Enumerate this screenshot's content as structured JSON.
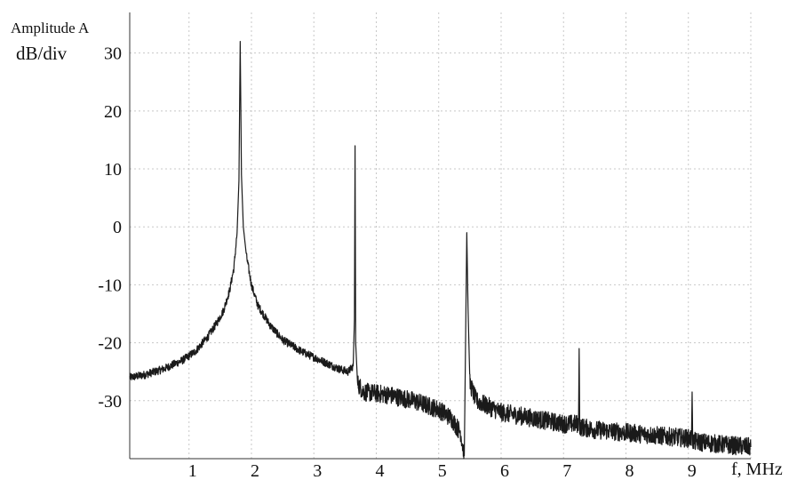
{
  "chart_data": {
    "type": "line",
    "ylabel": "Amplitude A",
    "yunit": "dB/div",
    "xlabel": "f, MHz",
    "xlim": [
      0.05,
      10.0
    ],
    "ylim": [
      -40,
      37
    ],
    "xticks": [
      1,
      2,
      3,
      4,
      5,
      6,
      7,
      8,
      9
    ],
    "yticks": [
      30,
      20,
      10,
      0,
      -10,
      -20,
      -30
    ],
    "grid": true,
    "series": [
      {
        "color": "#1a1a1a",
        "points": [
          [
            0.05,
            -26.0
          ],
          [
            0.3,
            -25.5
          ],
          [
            0.6,
            -24.5
          ],
          [
            0.9,
            -23.0
          ],
          [
            1.1,
            -21.5
          ],
          [
            1.3,
            -19.0
          ],
          [
            1.45,
            -16.5
          ],
          [
            1.55,
            -14.5
          ],
          [
            1.65,
            -11.0
          ],
          [
            1.72,
            -7.0
          ],
          [
            1.77,
            -1.0
          ],
          [
            1.8,
            8.0
          ],
          [
            1.82,
            32.0
          ],
          [
            1.84,
            9.0
          ],
          [
            1.87,
            0.0
          ],
          [
            1.92,
            -5.0
          ],
          [
            2.0,
            -10.0
          ],
          [
            2.1,
            -13.5
          ],
          [
            2.3,
            -17.0
          ],
          [
            2.5,
            -19.5
          ],
          [
            2.8,
            -21.5
          ],
          [
            3.1,
            -23.0
          ],
          [
            3.4,
            -24.5
          ],
          [
            3.55,
            -25.0
          ],
          [
            3.63,
            -24.0
          ],
          [
            3.65,
            -16.0
          ],
          [
            3.66,
            14.0
          ],
          [
            3.67,
            -20.0
          ],
          [
            3.7,
            -27.0
          ],
          [
            3.8,
            -28.5
          ],
          [
            4.2,
            -29.0
          ],
          [
            4.6,
            -30.0
          ],
          [
            5.0,
            -31.5
          ],
          [
            5.2,
            -33.0
          ],
          [
            5.35,
            -35.5
          ],
          [
            5.41,
            -39.5
          ],
          [
            5.45,
            -1.0
          ],
          [
            5.47,
            -14.0
          ],
          [
            5.5,
            -27.0
          ],
          [
            5.6,
            -30.0
          ],
          [
            6.0,
            -32.0
          ],
          [
            6.5,
            -33.0
          ],
          [
            7.0,
            -34.0
          ],
          [
            7.24,
            -34.0
          ],
          [
            7.25,
            -21.0
          ],
          [
            7.26,
            -34.5
          ],
          [
            7.5,
            -35.0
          ],
          [
            8.0,
            -35.5
          ],
          [
            8.5,
            -36.0
          ],
          [
            9.0,
            -36.5
          ],
          [
            9.05,
            -36.5
          ],
          [
            9.06,
            -28.5
          ],
          [
            9.07,
            -37.0
          ],
          [
            9.5,
            -37.5
          ],
          [
            10.0,
            -38.0
          ]
        ]
      }
    ]
  }
}
